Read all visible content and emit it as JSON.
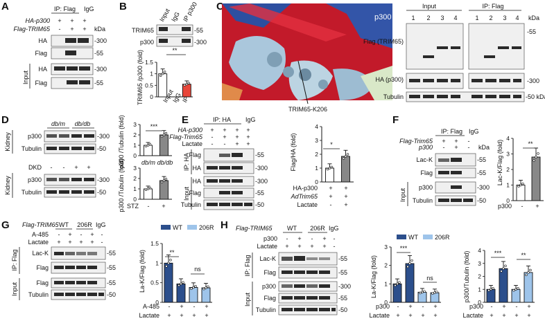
{
  "panels": {
    "A": {
      "letter": "A",
      "ip": "IP: Flag",
      "igg": "IgG",
      "rows": [
        {
          "label": "HA-p300",
          "marks": [
            "+",
            "+",
            "+"
          ]
        },
        {
          "label": "Flag-TRIM65",
          "marks": [
            "-",
            "+",
            "+"
          ]
        }
      ],
      "blots": [
        "HA",
        "Flag",
        "HA",
        "Flag"
      ],
      "kda": [
        "-300",
        "-55",
        "-300",
        "-55"
      ],
      "kda_head": "kDa",
      "input": "Input"
    },
    "B": {
      "letter": "B",
      "lanes": [
        "Input",
        "IgG",
        "IP p300"
      ],
      "blots": [
        "TRIM65",
        "p300"
      ],
      "kda": [
        "-55",
        "-300"
      ],
      "sig": "**",
      "ylabel": "TRIM65 /p300 (fold)",
      "xcats": [
        "Input",
        "IgG",
        "IP"
      ]
    },
    "C": {
      "letter": "C",
      "protein": "p300",
      "site": "TRIM65-K206",
      "input": "Input",
      "ip": "IP: Flag",
      "lanes": [
        "1",
        "2",
        "3",
        "4",
        "1",
        "2",
        "3",
        "4"
      ],
      "kda_head": "kDa",
      "rows": [
        "Flag (TRIM65)",
        "HA (p300)",
        "Tubulin"
      ],
      "kda": [
        "-55",
        "-300",
        "-50 kDa"
      ]
    },
    "D": {
      "letter": "D",
      "groups": [
        "db/m",
        "db/db"
      ],
      "dkd": "DKD",
      "dkd_marks": [
        "-",
        "-",
        "+",
        "+"
      ],
      "tissue": "Kidney",
      "blots": [
        "p300",
        "Tubulin",
        "p300",
        "Tubulin"
      ],
      "kda": [
        "-300",
        "-50",
        "-300",
        "-50"
      ],
      "sig": "***",
      "ylabel1": "p300 /Tubulin (fold)",
      "ylabel2": "p300 /Tubulin (fold)",
      "xcats1": [
        "db/m",
        "db/db"
      ],
      "stz": "STZ",
      "stz_marks": [
        "-",
        "+"
      ]
    },
    "E": {
      "letter": "E",
      "ip": "IP: HA",
      "igg": "IgG",
      "rows": [
        {
          "label": "HA-p300",
          "marks": [
            "+",
            "+",
            "+",
            "+"
          ]
        },
        {
          "label": "Flag-Trim65",
          "marks": [
            "-",
            "+",
            "+",
            "+"
          ]
        },
        {
          "label": "Lactate",
          "marks": [
            "-",
            "-",
            "+",
            "+"
          ]
        }
      ],
      "blots": [
        "Flag",
        "HA",
        "HA",
        "Flag",
        "Tubulin"
      ],
      "kda": [
        "-55",
        "-300",
        "-300",
        "-55",
        "-50"
      ],
      "sig": "*",
      "ylabel": "Flag/HA (fold)",
      "xrows": [
        {
          "label": "HA-p300",
          "marks": [
            "+",
            "+"
          ]
        },
        {
          "label": "AdTrim65",
          "marks": [
            "+",
            "+"
          ]
        },
        {
          "label": "Lactate",
          "marks": [
            "-",
            "+"
          ]
        }
      ],
      "ip_side": "IP: HA",
      "input": "Input"
    },
    "F": {
      "letter": "F",
      "ip": "IP: Flag",
      "igg": "IgG",
      "rows": [
        {
          "label": "Flag-Trim65",
          "marks": [
            "+",
            "+",
            "-"
          ]
        },
        {
          "label": "p300",
          "marks": [
            "-",
            "+",
            "-"
          ]
        }
      ],
      "blots": [
        "Lac-K",
        "Flag",
        "p300",
        "Tubulin"
      ],
      "kda": [
        "-55",
        "-55",
        "-300",
        "-50"
      ],
      "kda_head": "kDa",
      "sig": "**",
      "ylabel": "Lac-K/Flag (fold)",
      "xlabel": "p300",
      "xmarks": [
        "-",
        "+"
      ],
      "input": "Input"
    },
    "G": {
      "letter": "G",
      "flag": "Flag-TRIM65",
      "wt": "WT",
      "mut": "206R",
      "igg": "IgG",
      "rows": [
        {
          "label": "A-485",
          "marks": [
            "-",
            "+",
            "-",
            "+",
            "-"
          ]
        },
        {
          "label": "Lactate",
          "marks": [
            "+",
            "+",
            "+",
            "+",
            "-"
          ]
        }
      ],
      "blots": [
        "Lac-K",
        "Flag",
        "Flag",
        "Tubulin"
      ],
      "kda": [
        "-55",
        "-55",
        "-55",
        "-50"
      ],
      "ip_side": "IP: Flag",
      "input": "Input",
      "legend": [
        "WT",
        "206R"
      ],
      "sig": [
        "**",
        "ns"
      ],
      "ylabel": "La-K/Flag (fold)",
      "xrows": [
        {
          "label": "A-485",
          "marks": [
            "-",
            "+",
            "-",
            "+"
          ]
        },
        {
          "label": "Lactate",
          "marks": [
            "+",
            "+",
            "+",
            "+"
          ]
        }
      ]
    },
    "H": {
      "letter": "H",
      "flag": "Flag-TRIM65",
      "wt": "WT",
      "mut": "206R",
      "igg": "IgG",
      "rows": [
        {
          "label": "p300",
          "marks": [
            "-",
            "+",
            "-",
            "+",
            "-"
          ]
        },
        {
          "label": "Lactate",
          "marks": [
            "+",
            "+",
            "+",
            "+",
            "-"
          ]
        }
      ],
      "blots": [
        "Lac-K",
        "Flag",
        "p300",
        "Flag",
        "Tubulin"
      ],
      "kda": [
        "-55",
        "-55",
        "-300",
        "-55",
        "-50"
      ],
      "ip_side": "IP: Flag",
      "input": "Input",
      "legend": [
        "WT",
        "206R"
      ],
      "sig1": [
        "***",
        "ns"
      ],
      "sig2": [
        "***",
        "**"
      ],
      "ylabel1": "La-K/Flag (fold)",
      "ylabel2": "p300/Tubulin (fold)",
      "xrows": [
        {
          "label": "p300",
          "marks": [
            "-",
            "+",
            "-",
            "+"
          ]
        },
        {
          "label": "Lactate",
          "marks": [
            "+",
            "+",
            "+",
            "+"
          ]
        }
      ]
    }
  },
  "colors": {
    "wt": "#2c4f8c",
    "mut": "#9ec4ea",
    "ip_red": "#e8463a",
    "open": "#ffffff"
  },
  "chart_data": [
    {
      "type": "bar",
      "panel": "B",
      "categories": [
        "Input",
        "IgG",
        "IP"
      ],
      "values": [
        1.0,
        0,
        0.55
      ],
      "ylim": [
        0,
        1.5
      ],
      "yticks": [
        0,
        0.5,
        1.0,
        1.5
      ],
      "colors": [
        "#ffffff",
        "#ffffff",
        "#e8463a"
      ]
    },
    {
      "type": "bar",
      "panel": "D-top",
      "categories": [
        "db/m",
        "db/db"
      ],
      "values": [
        1.0,
        2.0
      ],
      "ylim": [
        0,
        3
      ],
      "yticks": [
        0,
        1,
        2,
        3
      ],
      "colors": [
        "#ffffff",
        "#888888"
      ]
    },
    {
      "type": "bar",
      "panel": "D-bottom",
      "categories": [
        "-",
        "+"
      ],
      "values": [
        1.0,
        1.8
      ],
      "ylim": [
        0,
        3
      ],
      "yticks": [
        0,
        1,
        2,
        3
      ],
      "colors": [
        "#ffffff",
        "#888888"
      ]
    },
    {
      "type": "bar",
      "panel": "E",
      "categories": [
        "-",
        "+"
      ],
      "values": [
        1.0,
        1.85
      ],
      "ylim": [
        0,
        4
      ],
      "yticks": [
        0,
        1,
        2,
        3,
        4
      ],
      "colors": [
        "#ffffff",
        "#888888"
      ]
    },
    {
      "type": "bar",
      "panel": "F",
      "categories": [
        "-",
        "+"
      ],
      "values": [
        1.0,
        2.8
      ],
      "ylim": [
        0,
        4
      ],
      "yticks": [
        0,
        1,
        2,
        3,
        4
      ],
      "colors": [
        "#ffffff",
        "#888888"
      ]
    },
    {
      "type": "bar",
      "panel": "G",
      "categories": [
        "1",
        "2",
        "3",
        "4"
      ],
      "values": [
        1.0,
        0.47,
        0.38,
        0.37
      ],
      "ylim": [
        0,
        1.5
      ],
      "yticks": [
        0,
        0.5,
        1.0,
        1.5
      ],
      "colors": [
        "#2c4f8c",
        "#2c4f8c",
        "#9ec4ea",
        "#9ec4ea"
      ]
    },
    {
      "type": "bar",
      "panel": "H-left",
      "categories": [
        "1",
        "2",
        "3",
        "4"
      ],
      "values": [
        1.0,
        2.1,
        0.55,
        0.52
      ],
      "ylim": [
        0,
        3
      ],
      "yticks": [
        0,
        1,
        2,
        3
      ],
      "colors": [
        "#2c4f8c",
        "#2c4f8c",
        "#9ec4ea",
        "#9ec4ea"
      ]
    },
    {
      "type": "bar",
      "panel": "H-right",
      "categories": [
        "1",
        "2",
        "3",
        "4"
      ],
      "values": [
        1.0,
        2.6,
        1.0,
        2.3
      ],
      "ylim": [
        0,
        4
      ],
      "yticks": [
        0,
        1,
        2,
        3,
        4
      ],
      "colors": [
        "#2c4f8c",
        "#2c4f8c",
        "#9ec4ea",
        "#9ec4ea"
      ]
    }
  ]
}
